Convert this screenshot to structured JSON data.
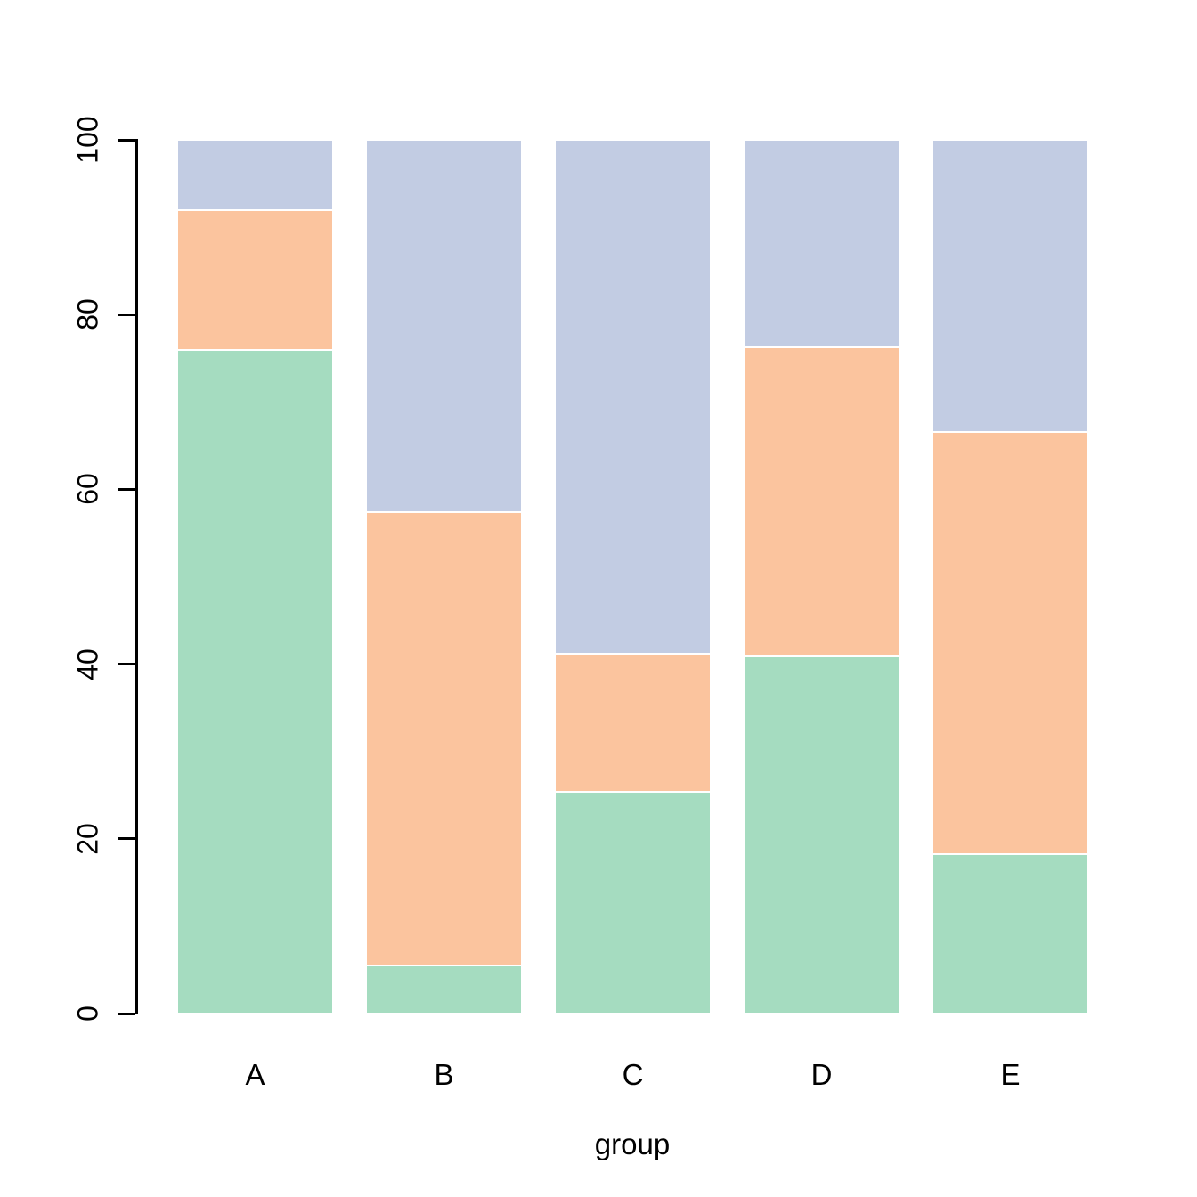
{
  "chart_data": {
    "type": "bar",
    "subtype": "stacked",
    "title": "",
    "xlabel": "group",
    "ylabel": "",
    "categories": [
      "A",
      "B",
      "C",
      "D",
      "E"
    ],
    "series": [
      {
        "name": "green-segment",
        "color": "#A5DCC0",
        "values": [
          75.9,
          5.5,
          25.4,
          40.9,
          18.2
        ]
      },
      {
        "name": "orange-segment",
        "color": "#FBC49E",
        "values": [
          16.0,
          51.9,
          15.8,
          35.3,
          48.4
        ]
      },
      {
        "name": "blue-segment",
        "color": "#C2CCE3",
        "values": [
          8.1,
          42.6,
          58.8,
          23.8,
          33.4
        ]
      }
    ],
    "ylim": [
      0,
      100
    ],
    "yticks": [
      "0",
      "20",
      "40",
      "60",
      "80",
      "100"
    ],
    "grid": "off",
    "legend": "none",
    "segment_border_color": "#ffffff",
    "axis_color": "#000000"
  }
}
